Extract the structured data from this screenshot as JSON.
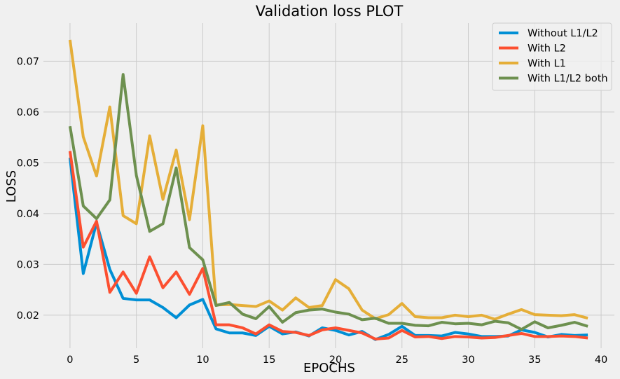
{
  "chart_data": {
    "type": "line",
    "title": "Validation loss PLOT",
    "xlabel": "EPOCHS",
    "ylabel": "LOSS",
    "xlim": [
      -2,
      41
    ],
    "ylim": [
      0.0135,
      0.0775
    ],
    "xticks": [
      0,
      5,
      10,
      15,
      20,
      25,
      30,
      35,
      40
    ],
    "yticks": [
      0.02,
      0.03,
      0.04,
      0.05,
      0.06,
      0.07
    ],
    "ytick_labels": [
      "0.02",
      "0.03",
      "0.04",
      "0.05",
      "0.06",
      "0.07"
    ],
    "grid": true,
    "legend_position": "top-right",
    "x": [
      0,
      1,
      2,
      3,
      4,
      5,
      6,
      7,
      8,
      9,
      10,
      11,
      12,
      13,
      14,
      15,
      16,
      17,
      18,
      19,
      20,
      21,
      22,
      23,
      24,
      25,
      26,
      27,
      28,
      29,
      30,
      31,
      32,
      33,
      34,
      35,
      36,
      37,
      38,
      39
    ],
    "series": [
      {
        "name": "Without L1/L2",
        "color": "#008fd5",
        "values": [
          0.051,
          0.0282,
          0.0382,
          0.029,
          0.0233,
          0.023,
          0.023,
          0.0215,
          0.0195,
          0.022,
          0.0231,
          0.0173,
          0.0165,
          0.0165,
          0.016,
          0.0178,
          0.0163,
          0.0167,
          0.0159,
          0.0175,
          0.017,
          0.0161,
          0.0168,
          0.0152,
          0.0162,
          0.0178,
          0.016,
          0.016,
          0.0159,
          0.0166,
          0.0163,
          0.0158,
          0.0158,
          0.0159,
          0.0171,
          0.0166,
          0.0157,
          0.0162,
          0.016,
          0.0161
        ]
      },
      {
        "name": "With L2",
        "color": "#fc4f30",
        "values": [
          0.0523,
          0.0334,
          0.0385,
          0.0245,
          0.0285,
          0.0243,
          0.0315,
          0.0254,
          0.0285,
          0.0241,
          0.0292,
          0.0181,
          0.0181,
          0.0175,
          0.0163,
          0.0181,
          0.0168,
          0.0166,
          0.016,
          0.0171,
          0.0175,
          0.017,
          0.0165,
          0.0153,
          0.0155,
          0.017,
          0.0157,
          0.0158,
          0.0154,
          0.0158,
          0.0157,
          0.0155,
          0.0156,
          0.016,
          0.0164,
          0.0158,
          0.0158,
          0.0159,
          0.0158,
          0.0155
        ]
      },
      {
        "name": "With L1",
        "color": "#e5ae38",
        "values": [
          0.0742,
          0.0551,
          0.0474,
          0.061,
          0.0396,
          0.038,
          0.0553,
          0.0428,
          0.0525,
          0.0388,
          0.0573,
          0.022,
          0.0221,
          0.0219,
          0.0217,
          0.0228,
          0.021,
          0.0234,
          0.0215,
          0.0219,
          0.027,
          0.0252,
          0.021,
          0.0193,
          0.0201,
          0.0223,
          0.0197,
          0.0195,
          0.0195,
          0.02,
          0.0197,
          0.02,
          0.0192,
          0.0202,
          0.0211,
          0.0201,
          0.02,
          0.0199,
          0.0201,
          0.0194
        ]
      },
      {
        "name": "With L1/L2 both",
        "color": "#6d904f",
        "values": [
          0.0572,
          0.0415,
          0.039,
          0.0427,
          0.0674,
          0.0475,
          0.0365,
          0.038,
          0.049,
          0.0333,
          0.0309,
          0.0219,
          0.0225,
          0.0202,
          0.0193,
          0.0217,
          0.0186,
          0.0205,
          0.021,
          0.0212,
          0.0206,
          0.0202,
          0.0191,
          0.0194,
          0.0184,
          0.0184,
          0.018,
          0.0179,
          0.0186,
          0.0183,
          0.0184,
          0.0181,
          0.0188,
          0.0185,
          0.0172,
          0.0187,
          0.0175,
          0.018,
          0.0186,
          0.0178
        ]
      }
    ]
  }
}
